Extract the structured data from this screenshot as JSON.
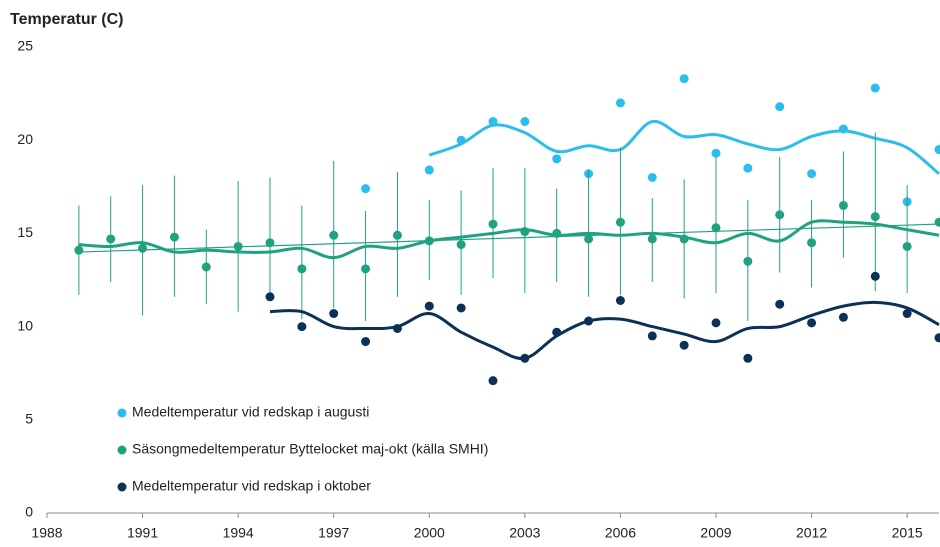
{
  "chart_data": {
    "type": "scatter",
    "title": "Temperatur (C)",
    "x": [
      1989,
      1990,
      1991,
      1992,
      1993,
      1994,
      1995,
      1996,
      1997,
      1998,
      1999,
      2000,
      2001,
      2002,
      2003,
      2004,
      2005,
      2006,
      2007,
      2008,
      2009,
      2010,
      2011,
      2012,
      2013,
      2014,
      2015,
      2016
    ],
    "xlim": [
      1988,
      2016
    ],
    "xticks": [
      1988,
      1991,
      1994,
      1997,
      2000,
      2003,
      2006,
      2009,
      2012,
      2015
    ],
    "ylim": [
      0,
      25
    ],
    "yticks": [
      0,
      5,
      10,
      15,
      20,
      25
    ],
    "grid": false,
    "legend": "lower left",
    "series": [
      {
        "name": "Medeltemperatur vid redskap i augusti",
        "color": "#2cbdee",
        "values": [
          null,
          null,
          null,
          null,
          null,
          null,
          null,
          null,
          null,
          17.4,
          null,
          18.4,
          20.0,
          21.0,
          21.0,
          19.0,
          18.2,
          22.0,
          18.0,
          23.3,
          19.3,
          18.5,
          21.8,
          18.2,
          20.6,
          22.8,
          16.7,
          19.5
        ],
        "smooth": [
          null,
          null,
          null,
          null,
          null,
          null,
          null,
          null,
          null,
          null,
          null,
          19.2,
          19.8,
          20.8,
          20.4,
          19.4,
          19.7,
          19.5,
          21.0,
          20.2,
          20.3,
          19.8,
          19.5,
          20.2,
          20.5,
          20.1,
          19.6,
          18.2
        ]
      },
      {
        "name": "Säsongmedeltemperatur Byttelocket maj-okt (källa SMHI)",
        "color": "#1fa27f",
        "values": [
          14.1,
          14.7,
          14.2,
          14.8,
          13.2,
          14.3,
          14.5,
          13.1,
          14.9,
          13.1,
          14.9,
          14.6,
          14.4,
          15.5,
          15.1,
          15.0,
          14.7,
          15.6,
          14.7,
          14.7,
          15.3,
          13.5,
          16.0,
          14.5,
          16.5,
          15.9,
          14.3,
          15.6
        ],
        "low": [
          11.7,
          12.4,
          10.6,
          11.6,
          11.2,
          10.8,
          11.7,
          10.4,
          11.0,
          10.3,
          11.6,
          12.5,
          11.7,
          12.6,
          11.8,
          12.4,
          11.6,
          11.7,
          12.4,
          11.5,
          11.8,
          10.3,
          12.9,
          12.1,
          13.7,
          11.9,
          11.8,
          null
        ],
        "high": [
          16.5,
          17.0,
          17.6,
          18.1,
          15.2,
          17.8,
          18.0,
          16.5,
          18.9,
          16.2,
          18.3,
          16.8,
          17.3,
          18.5,
          18.5,
          17.4,
          18.4,
          19.6,
          16.9,
          17.9,
          19.1,
          16.8,
          19.1,
          16.8,
          19.4,
          20.4,
          17.6,
          null
        ],
        "smooth": [
          14.4,
          14.3,
          14.5,
          14.0,
          14.1,
          14.0,
          14.0,
          14.2,
          13.7,
          14.3,
          14.2,
          14.6,
          14.8,
          15.0,
          15.2,
          14.9,
          15.0,
          14.9,
          15.0,
          14.8,
          14.5,
          15.0,
          14.6,
          15.6,
          15.6,
          15.5,
          15.2,
          14.9
        ],
        "trend": {
          "x": [
            1989,
            2016
          ],
          "values": [
            14.0,
            15.5
          ]
        }
      },
      {
        "name": "Medeltemperatur vid redskap i oktober",
        "color": "#0d3057",
        "values": [
          null,
          null,
          null,
          null,
          null,
          null,
          11.6,
          10.0,
          10.7,
          9.2,
          9.9,
          11.1,
          11.0,
          7.1,
          8.3,
          9.7,
          10.3,
          11.4,
          9.5,
          9.0,
          10.2,
          8.3,
          11.2,
          10.2,
          10.5,
          12.7,
          10.7,
          9.4
        ],
        "smooth": [
          null,
          null,
          null,
          null,
          null,
          null,
          10.8,
          10.8,
          10.0,
          9.9,
          10.0,
          10.7,
          9.7,
          8.9,
          8.3,
          9.5,
          10.3,
          10.4,
          10.0,
          9.6,
          9.2,
          9.9,
          10.0,
          10.6,
          11.1,
          11.3,
          11.0,
          10.1
        ]
      }
    ]
  }
}
